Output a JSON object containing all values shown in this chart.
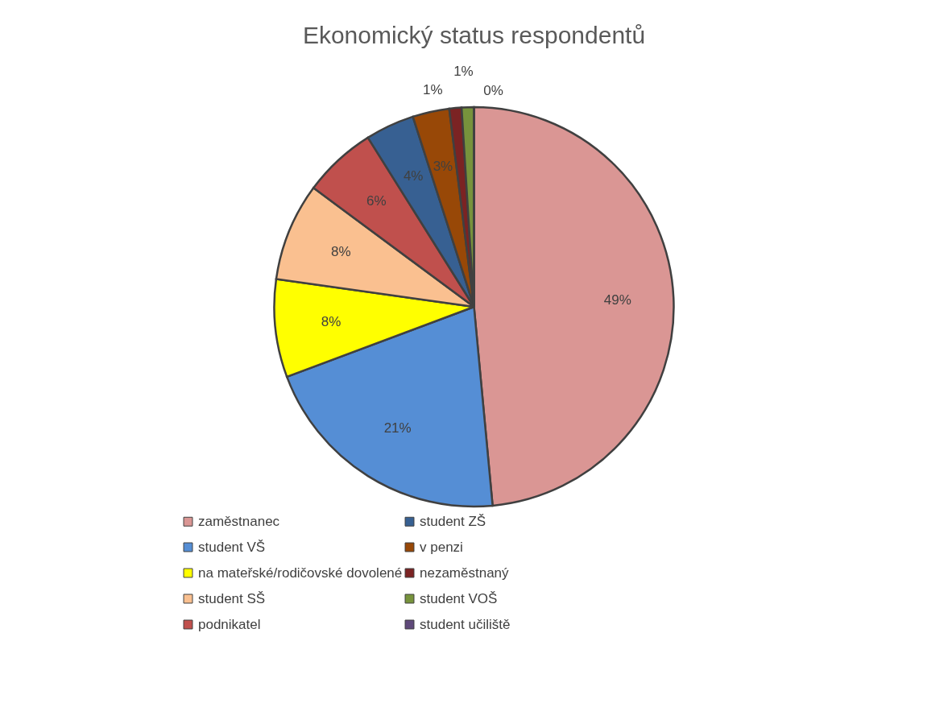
{
  "chart_data": {
    "type": "pie",
    "title": "Ekonomický status respondentů",
    "categories": [
      "zaměstnanec",
      "student VŠ",
      "na mateřské/rodičovské dovolené",
      "student SŠ",
      "podnikatel",
      "student ZŠ",
      "v penzi",
      "nezaměstnaný",
      "student VOŠ",
      "student učiliště"
    ],
    "values": [
      49,
      21,
      8,
      8,
      6,
      4,
      3,
      1,
      1,
      0
    ],
    "value_labels": [
      "49%",
      "21%",
      "8%",
      "8%",
      "6%",
      "4%",
      "3%",
      "1%",
      "1%",
      "0%"
    ],
    "colors": [
      "#da9694",
      "#558ed5",
      "#ffff00",
      "#fac090",
      "#c0504d",
      "#376092",
      "#984807",
      "#7b2323",
      "#77933c",
      "#5f497a"
    ],
    "legend": "bottom"
  }
}
